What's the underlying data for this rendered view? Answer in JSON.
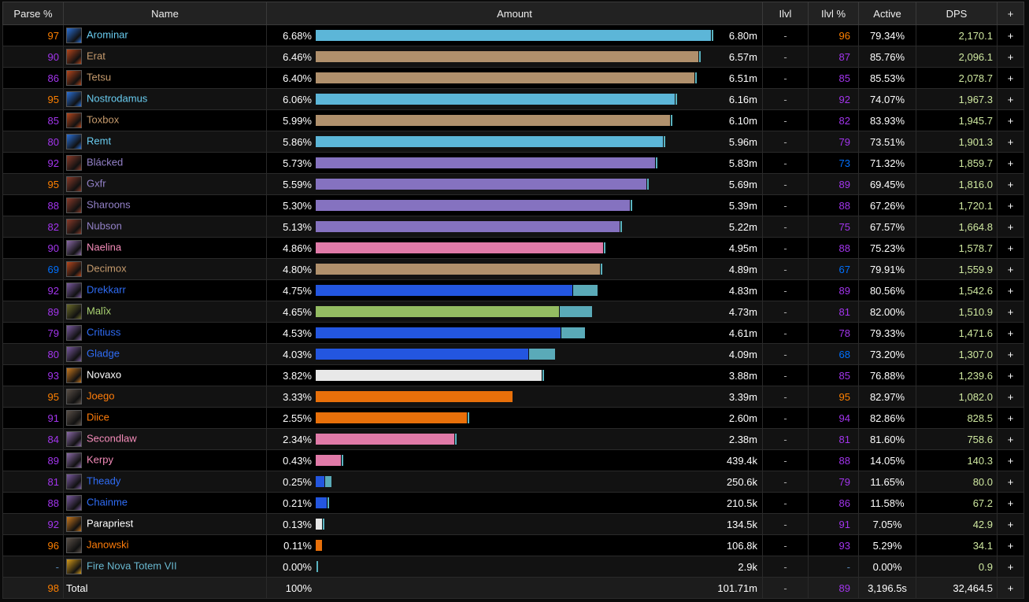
{
  "columns": [
    "Parse %",
    "Name",
    "Amount",
    "Ilvl",
    "Ilvl %",
    "Active",
    "DPS",
    "+"
  ],
  "class_colors": {
    "mage": {
      "text": "#69ccf0",
      "bar": "#5cb6d8",
      "icon": "#2a6fd6"
    },
    "warrior": {
      "text": "#c69b6d",
      "bar": "#b0906c",
      "icon": "#b5461c"
    },
    "warlock": {
      "text": "#9482c9",
      "bar": "#8572c0",
      "icon": "#8a3b2a"
    },
    "paladin": {
      "text": "#f58cba",
      "bar": "#e07aa8",
      "icon": "#8b6aa8"
    },
    "shaman": {
      "text": "#2f6cf5",
      "bar": "#2356e0",
      "icon": "#7a5aa0"
    },
    "hunter": {
      "text": "#abd473",
      "bar": "#94bc62",
      "icon": "#6a6a2a"
    },
    "priest": {
      "text": "#ffffff",
      "bar": "#e8e8e8",
      "icon": "#c8781e"
    },
    "druid": {
      "text": "#ff7d0a",
      "bar": "#e8700a",
      "icon": "#5a5048"
    },
    "totem": {
      "text": "#69b8d0",
      "bar": "#69b8d0",
      "icon": "#d49a1a"
    }
  },
  "pet_bar_color": "#5aaab8",
  "rank_colors": {
    "legendary": "#ff8000",
    "epic": "#a335ee",
    "rare": "#0070ff",
    "none": "#5a8ab8"
  },
  "rows": [
    {
      "parse": "97",
      "name": "Arominar",
      "class": "mage",
      "icon": "frost-icon",
      "pct": "6.68%",
      "amount": "6.80m",
      "ilvl": "-",
      "ilvl_pct": "96",
      "active": "79.34%",
      "dps": "2,170.1",
      "bar": 6.68
    },
    {
      "parse": "90",
      "name": "Erat",
      "class": "warrior",
      "icon": "warrior-icon",
      "pct": "6.46%",
      "amount": "6.57m",
      "ilvl": "-",
      "ilvl_pct": "87",
      "active": "85.76%",
      "dps": "2,096.1",
      "bar": 6.46
    },
    {
      "parse": "86",
      "name": "Tetsu",
      "class": "warrior",
      "icon": "warrior-icon",
      "pct": "6.40%",
      "amount": "6.51m",
      "ilvl": "-",
      "ilvl_pct": "85",
      "active": "85.53%",
      "dps": "2,078.7",
      "bar": 6.4
    },
    {
      "parse": "95",
      "name": "Nostrodamus",
      "class": "mage",
      "icon": "frost-icon",
      "pct": "6.06%",
      "amount": "6.16m",
      "ilvl": "-",
      "ilvl_pct": "92",
      "active": "74.07%",
      "dps": "1,967.3",
      "bar": 6.06
    },
    {
      "parse": "85",
      "name": "Toxbox",
      "class": "warrior",
      "icon": "warrior-icon",
      "pct": "5.99%",
      "amount": "6.10m",
      "ilvl": "-",
      "ilvl_pct": "82",
      "active": "83.93%",
      "dps": "1,945.7",
      "bar": 5.99
    },
    {
      "parse": "80",
      "name": "Remt",
      "class": "mage",
      "icon": "frost-icon",
      "pct": "5.86%",
      "amount": "5.96m",
      "ilvl": "-",
      "ilvl_pct": "79",
      "active": "73.51%",
      "dps": "1,901.3",
      "bar": 5.86
    },
    {
      "parse": "92",
      "name": "Blácked",
      "class": "warlock",
      "icon": "destruction-icon",
      "pct": "5.73%",
      "amount": "5.83m",
      "ilvl": "-",
      "ilvl_pct": "73",
      "active": "71.32%",
      "dps": "1,859.7",
      "bar": 5.73
    },
    {
      "parse": "95",
      "name": "Gxfr",
      "class": "warlock",
      "icon": "destruction-icon",
      "pct": "5.59%",
      "amount": "5.69m",
      "ilvl": "-",
      "ilvl_pct": "89",
      "active": "69.45%",
      "dps": "1,816.0",
      "bar": 5.59
    },
    {
      "parse": "88",
      "name": "Sharoons",
      "class": "warlock",
      "icon": "destruction-icon",
      "pct": "5.30%",
      "amount": "5.39m",
      "ilvl": "-",
      "ilvl_pct": "88",
      "active": "67.26%",
      "dps": "1,720.1",
      "bar": 5.3
    },
    {
      "parse": "82",
      "name": "Nubson",
      "class": "warlock",
      "icon": "destruction-icon",
      "pct": "5.13%",
      "amount": "5.22m",
      "ilvl": "-",
      "ilvl_pct": "75",
      "active": "67.57%",
      "dps": "1,664.8",
      "bar": 5.13
    },
    {
      "parse": "90",
      "name": "Naelina",
      "class": "paladin",
      "icon": "retribution-icon",
      "pct": "4.86%",
      "amount": "4.95m",
      "ilvl": "-",
      "ilvl_pct": "88",
      "active": "75.23%",
      "dps": "1,578.7",
      "bar": 4.86
    },
    {
      "parse": "69",
      "name": "Decimox",
      "class": "warrior",
      "icon": "fury-icon",
      "pct": "4.80%",
      "amount": "4.89m",
      "ilvl": "-",
      "ilvl_pct": "67",
      "active": "79.91%",
      "dps": "1,559.9",
      "bar": 4.8
    },
    {
      "parse": "92",
      "name": "Drekkarr",
      "class": "shaman",
      "icon": "enhancement-icon",
      "pct": "4.75%",
      "amount": "4.83m",
      "ilvl": "-",
      "ilvl_pct": "89",
      "active": "80.56%",
      "dps": "1,542.6",
      "bar": 4.34,
      "pet": 0.41
    },
    {
      "parse": "89",
      "name": "Malîx",
      "class": "hunter",
      "icon": "hunter-icon",
      "pct": "4.65%",
      "amount": "4.73m",
      "ilvl": "-",
      "ilvl_pct": "81",
      "active": "82.00%",
      "dps": "1,510.9",
      "bar": 4.11,
      "pet": 0.54
    },
    {
      "parse": "79",
      "name": "Critiuss",
      "class": "shaman",
      "icon": "enhancement-icon",
      "pct": "4.53%",
      "amount": "4.61m",
      "ilvl": "-",
      "ilvl_pct": "78",
      "active": "79.33%",
      "dps": "1,471.6",
      "bar": 4.14,
      "pet": 0.39
    },
    {
      "parse": "80",
      "name": "Gladge",
      "class": "shaman",
      "icon": "lightning-icon",
      "pct": "4.03%",
      "amount": "4.09m",
      "ilvl": "-",
      "ilvl_pct": "68",
      "active": "73.20%",
      "dps": "1,307.0",
      "bar": 3.59,
      "pet": 0.44
    },
    {
      "parse": "93",
      "name": "Novaxo",
      "class": "priest",
      "icon": "shadow-icon",
      "pct": "3.82%",
      "amount": "3.88m",
      "ilvl": "-",
      "ilvl_pct": "85",
      "active": "76.88%",
      "dps": "1,239.6",
      "bar": 3.82
    },
    {
      "parse": "95",
      "name": "Joego",
      "class": "druid",
      "icon": "feral-icon",
      "pct": "3.33%",
      "amount": "3.39m",
      "ilvl": "-",
      "ilvl_pct": "95",
      "active": "82.97%",
      "dps": "1,082.0",
      "bar": 3.33,
      "notick": true
    },
    {
      "parse": "91",
      "name": "Diice",
      "class": "druid",
      "icon": "feral-icon",
      "pct": "2.55%",
      "amount": "2.60m",
      "ilvl": "-",
      "ilvl_pct": "94",
      "active": "82.86%",
      "dps": "828.5",
      "bar": 2.55
    },
    {
      "parse": "84",
      "name": "Secondlaw",
      "class": "paladin",
      "icon": "holy-icon",
      "pct": "2.34%",
      "amount": "2.38m",
      "ilvl": "-",
      "ilvl_pct": "81",
      "active": "81.60%",
      "dps": "758.6",
      "bar": 2.34
    },
    {
      "parse": "89",
      "name": "Kerpy",
      "class": "paladin",
      "icon": "holy-light-icon",
      "pct": "0.43%",
      "amount": "439.4k",
      "ilvl": "-",
      "ilvl_pct": "88",
      "active": "14.05%",
      "dps": "140.3",
      "bar": 0.43
    },
    {
      "parse": "81",
      "name": "Theady",
      "class": "shaman",
      "icon": "restoration-icon",
      "pct": "0.25%",
      "amount": "250.6k",
      "ilvl": "-",
      "ilvl_pct": "79",
      "active": "11.65%",
      "dps": "80.0",
      "bar": 0.15,
      "pet": 0.1
    },
    {
      "parse": "88",
      "name": "Chainme",
      "class": "shaman",
      "icon": "restoration-icon",
      "pct": "0.21%",
      "amount": "210.5k",
      "ilvl": "-",
      "ilvl_pct": "86",
      "active": "11.58%",
      "dps": "67.2",
      "bar": 0.18
    },
    {
      "parse": "92",
      "name": "Parapriest",
      "class": "priest",
      "icon": "discipline-icon",
      "pct": "0.13%",
      "amount": "134.5k",
      "ilvl": "-",
      "ilvl_pct": "91",
      "active": "7.05%",
      "dps": "42.9",
      "bar": 0.11
    },
    {
      "parse": "96",
      "name": "Janowski",
      "class": "druid",
      "icon": "restoration-druid-icon",
      "pct": "0.11%",
      "amount": "106.8k",
      "ilvl": "-",
      "ilvl_pct": "93",
      "active": "5.29%",
      "dps": "34.1",
      "bar": 0.11,
      "notick": true
    },
    {
      "parse": "-",
      "name": "Fire Nova Totem VII",
      "class": "totem",
      "icon": "totem-icon",
      "pct": "0.00%",
      "amount": "2.9k",
      "ilvl": "-",
      "ilvl_pct": "-",
      "active": "0.00%",
      "dps": "0.9",
      "bar": 0
    }
  ],
  "total": {
    "parse": "98",
    "name": "Total",
    "pct": "100%",
    "amount": "101.71m",
    "ilvl": "-",
    "ilvl_pct": "89",
    "active": "3,196.5s",
    "dps": "32,464.5"
  },
  "expand_label": "+"
}
